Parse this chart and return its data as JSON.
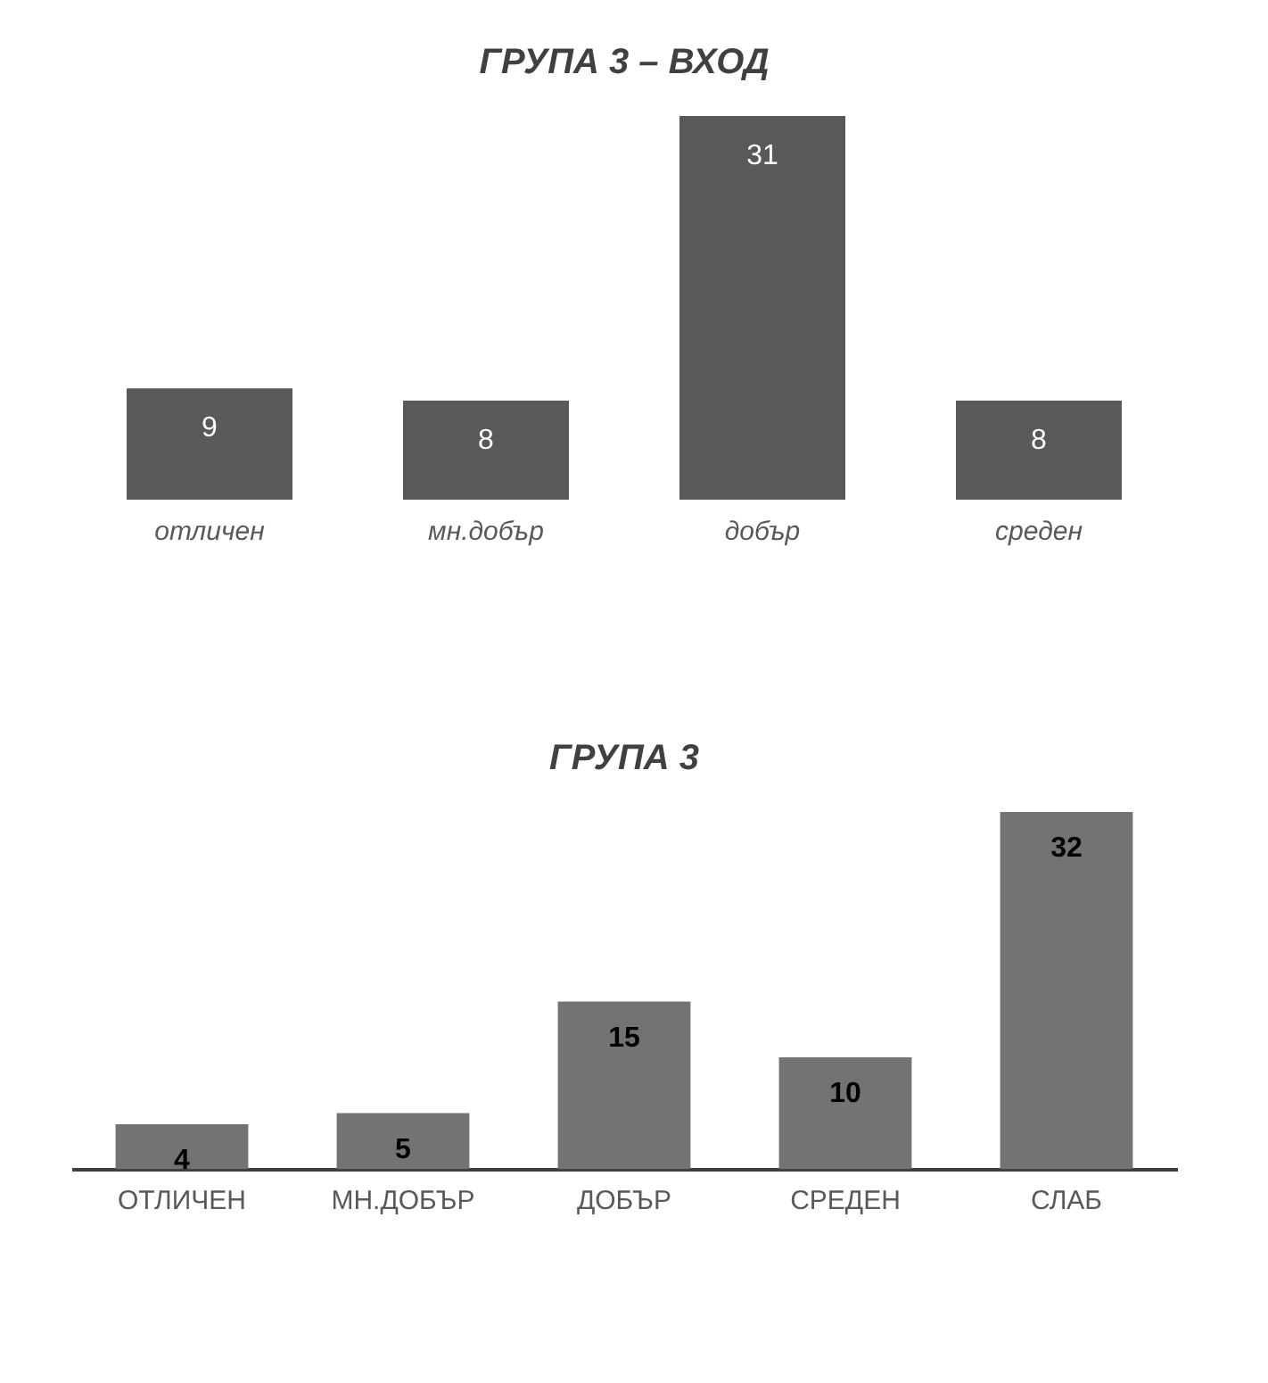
{
  "chart_data": [
    {
      "type": "bar",
      "title": "ГРУПА 3 – ВХОД",
      "categories": [
        "отличен",
        "мн.добър",
        "добър",
        "среден"
      ],
      "values": [
        9,
        8,
        31,
        8
      ],
      "color": "#595959",
      "data_labels": true
    },
    {
      "type": "bar",
      "title": "ГРУПА 3",
      "categories": [
        "ОТЛИЧЕН",
        "МН.ДОБЪР",
        "ДОБЪР",
        "СРЕДЕН",
        "СЛАБ"
      ],
      "values": [
        4,
        5,
        15,
        10,
        32
      ],
      "color": "#737373",
      "data_labels": true
    }
  ]
}
